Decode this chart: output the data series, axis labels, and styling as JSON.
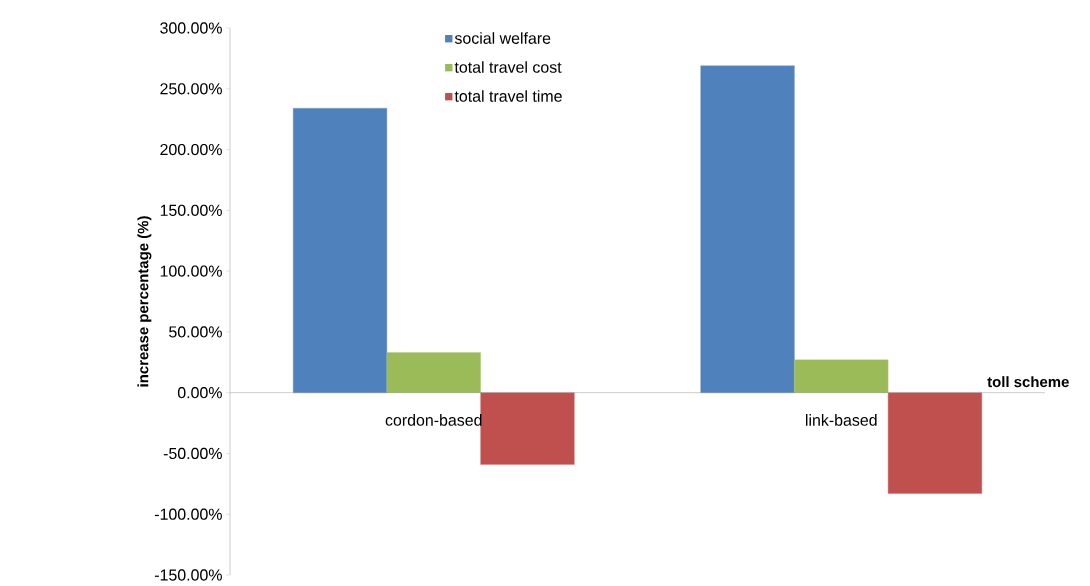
{
  "chart_data": {
    "type": "bar",
    "ylabel": "increase percentage (%)",
    "xlabel": "toll scheme",
    "categories": [
      "cordon-based",
      "link-based"
    ],
    "series": [
      {
        "name": "social welfare",
        "color": "#4f81bd",
        "values": [
          234,
          269
        ]
      },
      {
        "name": "total travel cost",
        "color": "#9bbb59",
        "values": [
          33,
          27
        ]
      },
      {
        "name": "total travel time",
        "color": "#c0504d",
        "values": [
          -59,
          -83
        ]
      }
    ],
    "ylim": [
      -150,
      300
    ],
    "yticks": [
      {
        "value": -150,
        "label": "-150.00%"
      },
      {
        "value": -100,
        "label": "-100.00%"
      },
      {
        "value": -50,
        "label": "-50.00%"
      },
      {
        "value": 0,
        "label": "0.00%"
      },
      {
        "value": 50,
        "label": "50.00%"
      },
      {
        "value": 100,
        "label": "100.00%"
      },
      {
        "value": 150,
        "label": "150.00%"
      },
      {
        "value": 200,
        "label": "200.00%"
      },
      {
        "value": 250,
        "label": "250.00%"
      },
      {
        "value": 300,
        "label": "300.00%"
      }
    ],
    "grid": false,
    "legend": "top"
  }
}
